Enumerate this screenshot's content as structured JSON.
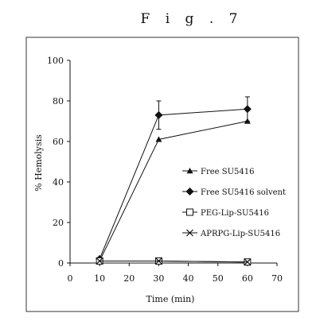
{
  "figure_label": "F i g .  7",
  "chart_data": {
    "type": "line",
    "title": "",
    "xlabel": "Time (min)",
    "ylabel": "% Hemolysis",
    "xlim": [
      0,
      70
    ],
    "ylim": [
      0,
      100
    ],
    "xticks": [
      0,
      10,
      20,
      30,
      40,
      50,
      60,
      70
    ],
    "yticks": [
      0,
      20,
      40,
      60,
      80,
      100
    ],
    "grid": false,
    "legend_position": "right-middle",
    "series": [
      {
        "name": "Free SU5416",
        "marker": "triangle",
        "x": [
          10,
          30,
          60
        ],
        "y": [
          1,
          61,
          70
        ],
        "err": [
          0,
          0,
          0
        ]
      },
      {
        "name": "Free SU5416 solvent",
        "marker": "diamond",
        "x": [
          10,
          30,
          60
        ],
        "y": [
          2,
          73,
          76
        ],
        "err": [
          0,
          7,
          6
        ]
      },
      {
        "name": "PEG-Lip-SU5416",
        "marker": "square",
        "x": [
          10,
          30,
          60
        ],
        "y": [
          1,
          1,
          0.5
        ],
        "err": [
          0,
          0,
          0
        ]
      },
      {
        "name": "APRPG-Lip-SU5416",
        "marker": "x",
        "x": [
          10,
          30,
          60
        ],
        "y": [
          1,
          1,
          0.5
        ],
        "err": [
          0,
          0,
          0
        ]
      }
    ]
  }
}
